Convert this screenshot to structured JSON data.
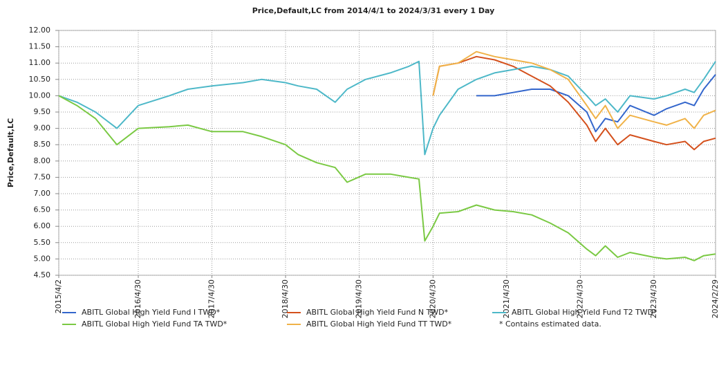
{
  "chart_data": {
    "type": "line",
    "title": "Price,Default,LC from 2014/4/1 to 2024/3/31 every 1 Day",
    "y_label": "Price,Default,LC",
    "note": "* Contains estimated data.",
    "grid": true,
    "legend": "bottom",
    "x": [
      "2015-04-02",
      "2015-07-01",
      "2015-10-01",
      "2016-01-15",
      "2016-04-30",
      "2016-10-01",
      "2017-01-01",
      "2017-04-30",
      "2017-10-01",
      "2018-01-01",
      "2018-04-30",
      "2018-07-01",
      "2018-10-01",
      "2019-01-01",
      "2019-03-01",
      "2019-06-01",
      "2019-10-01",
      "2020-01-01",
      "2020-02-20",
      "2020-03-20",
      "2020-04-30",
      "2020-06-01",
      "2020-09-01",
      "2020-12-01",
      "2021-03-01",
      "2021-06-01",
      "2021-09-01",
      "2021-12-01",
      "2022-03-01",
      "2022-06-01",
      "2022-07-15",
      "2022-09-01",
      "2022-11-01",
      "2023-01-01",
      "2023-04-30",
      "2023-07-01",
      "2023-10-01",
      "2023-11-15",
      "2024-01-01",
      "2024-02-29"
    ],
    "xlim": [
      "2015-04-02",
      "2024-02-29"
    ],
    "xticks": [
      {
        "value": "2015-04-02",
        "label": "2015/4/2"
      },
      {
        "value": "2016-04-30",
        "label": "2016/4/30"
      },
      {
        "value": "2017-04-30",
        "label": "2017/4/30"
      },
      {
        "value": "2018-04-30",
        "label": "2018/4/30"
      },
      {
        "value": "2019-04-30",
        "label": "2019/4/30"
      },
      {
        "value": "2020-04-30",
        "label": "2020/4/30"
      },
      {
        "value": "2021-04-30",
        "label": "2021/4/30"
      },
      {
        "value": "2022-04-30",
        "label": "2022/4/30"
      },
      {
        "value": "2023-04-30",
        "label": "2023/4/30"
      },
      {
        "value": "2024-02-29",
        "label": "2024/2/29"
      }
    ],
    "ylim": [
      4.5,
      12
    ],
    "yticks": [
      {
        "value": 4.5,
        "label": "4.50"
      },
      {
        "value": 5,
        "label": "5.00"
      },
      {
        "value": 5.5,
        "label": "5.50"
      },
      {
        "value": 6,
        "label": "6.00"
      },
      {
        "value": 6.5,
        "label": "6.50"
      },
      {
        "value": 7,
        "label": "7.00"
      },
      {
        "value": 7.5,
        "label": "7.50"
      },
      {
        "value": 8,
        "label": "8.00"
      },
      {
        "value": 8.5,
        "label": "8.50"
      },
      {
        "value": 9,
        "label": "9.00"
      },
      {
        "value": 9.5,
        "label": "9.50"
      },
      {
        "value": 10,
        "label": "10.00"
      },
      {
        "value": 10.5,
        "label": "10.50"
      },
      {
        "value": 11,
        "label": "11.00"
      },
      {
        "value": 11.5,
        "label": "11.50"
      },
      {
        "value": 12,
        "label": "12.00"
      }
    ],
    "series": [
      {
        "name": "ABITL Global High Yield Fund I TWD*",
        "color": "#3366cc",
        "values": [
          null,
          null,
          null,
          null,
          null,
          null,
          null,
          null,
          null,
          null,
          null,
          null,
          null,
          null,
          null,
          null,
          null,
          null,
          null,
          null,
          null,
          null,
          null,
          10.0,
          10.0,
          10.1,
          10.2,
          10.2,
          10.0,
          9.5,
          8.9,
          9.3,
          9.2,
          9.7,
          9.4,
          9.6,
          9.8,
          9.7,
          10.2,
          10.65
        ]
      },
      {
        "name": "ABITL Global High Yield Fund N TWD*",
        "color": "#d4501c",
        "values": [
          null,
          null,
          null,
          null,
          null,
          null,
          null,
          null,
          null,
          null,
          null,
          null,
          null,
          null,
          null,
          null,
          null,
          null,
          null,
          null,
          10.0,
          10.9,
          11.0,
          11.2,
          11.1,
          10.9,
          10.6,
          10.3,
          9.8,
          9.1,
          8.6,
          9.0,
          8.5,
          8.8,
          8.6,
          8.5,
          8.6,
          8.35,
          8.6,
          8.7
        ]
      },
      {
        "name": "ABITL Global High Yield Fund T2 TWD*",
        "color": "#4db8c8",
        "values": [
          10.0,
          9.8,
          9.5,
          9.0,
          9.7,
          10.0,
          10.2,
          10.3,
          10.4,
          10.5,
          10.4,
          10.3,
          10.2,
          9.8,
          10.2,
          10.5,
          10.7,
          10.9,
          11.05,
          8.2,
          9.0,
          9.4,
          10.2,
          10.5,
          10.7,
          10.8,
          10.9,
          10.8,
          10.6,
          10.0,
          9.7,
          9.9,
          9.5,
          10.0,
          9.9,
          10.0,
          10.2,
          10.1,
          10.5,
          11.05
        ]
      },
      {
        "name": "ABITL Global High Yield Fund TA TWD*",
        "color": "#7ac943",
        "values": [
          10.0,
          9.7,
          9.3,
          8.5,
          9.0,
          9.05,
          9.1,
          8.9,
          8.9,
          8.75,
          8.5,
          8.2,
          7.95,
          7.8,
          7.35,
          7.6,
          7.6,
          7.5,
          7.45,
          5.55,
          6.0,
          6.4,
          6.45,
          6.65,
          6.5,
          6.45,
          6.35,
          6.1,
          5.8,
          5.3,
          5.1,
          5.4,
          5.05,
          5.2,
          5.05,
          5.0,
          5.05,
          4.95,
          5.1,
          5.15
        ]
      },
      {
        "name": "ABITL Global High Yield Fund TT TWD*",
        "color": "#f0b248",
        "values": [
          null,
          null,
          null,
          null,
          null,
          null,
          null,
          null,
          null,
          null,
          null,
          null,
          null,
          null,
          null,
          null,
          null,
          null,
          null,
          null,
          10.0,
          10.9,
          11.0,
          11.35,
          11.2,
          11.1,
          11.0,
          10.8,
          10.5,
          9.7,
          9.3,
          9.7,
          9.0,
          9.4,
          9.2,
          9.1,
          9.3,
          9.0,
          9.4,
          9.55
        ]
      }
    ]
  }
}
